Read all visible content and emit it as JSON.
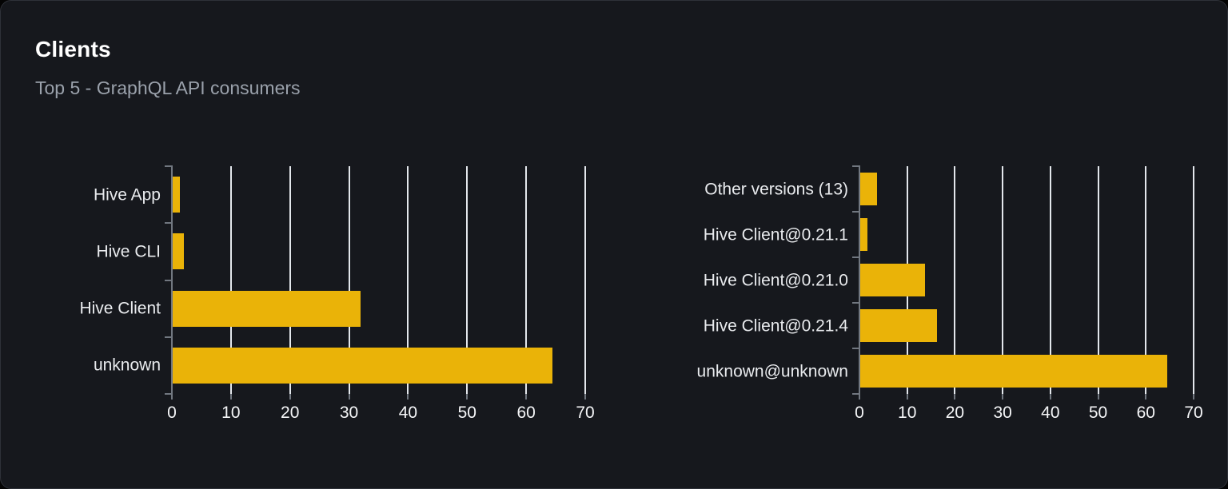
{
  "card": {
    "title": "Clients",
    "subtitle": "Top 5 - GraphQL API consumers"
  },
  "colors": {
    "page_bg": "#040404",
    "card_bg": "#16181d",
    "card_border": "#2e3138",
    "bar": "#eab308",
    "gridline": "#e3e7ec",
    "axis": "#717780",
    "category_label": "#e9ebee",
    "tick_label": "#f5f6f8",
    "title": "#ffffff",
    "subtitle": "#9aa1ab"
  },
  "chart_data": [
    {
      "type": "bar",
      "name": "clients-by-name",
      "orientation": "horizontal",
      "categories": [
        "Hive App",
        "Hive CLI",
        "Hive Client",
        "unknown"
      ],
      "values": [
        1.4,
        2,
        32,
        64.5
      ],
      "xlim": [
        0,
        70
      ],
      "xticks": [
        0,
        10,
        20,
        30,
        40,
        50,
        60,
        70
      ],
      "grid": true,
      "legend": false,
      "xlabel": "",
      "ylabel": ""
    },
    {
      "type": "bar",
      "name": "clients-by-version",
      "orientation": "horizontal",
      "categories": [
        "Other versions (13)",
        "Hive Client@0.21.1",
        "Hive Client@0.21.0",
        "Hive Client@0.21.4",
        "unknown@unknown"
      ],
      "values": [
        3.7,
        1.7,
        13.7,
        16.3,
        64.5
      ],
      "xlim": [
        0,
        70
      ],
      "xticks": [
        0,
        10,
        20,
        30,
        40,
        50,
        60,
        70
      ],
      "grid": true,
      "legend": false,
      "xlabel": "",
      "ylabel": ""
    }
  ]
}
